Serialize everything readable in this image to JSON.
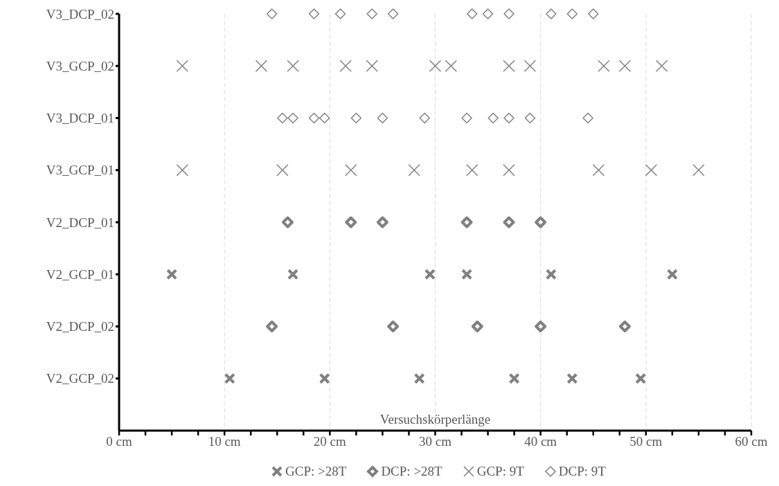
{
  "chart_data": {
    "type": "scatter",
    "xlabel": "Versuchskörperlänge",
    "orientation": "horizontal",
    "categories": [
      "V3_DCP_02",
      "V3_GCP_02",
      "V3_DCP_01",
      "V3_GCP_01",
      "V2_DCP_01",
      "V2_GCP_01",
      "V2_DCP_02",
      "V2_GCP_02"
    ],
    "xlim": [
      0,
      60
    ],
    "xticks": [
      {
        "value": 0,
        "label": "0 cm"
      },
      {
        "value": 2.5,
        "label": null
      },
      {
        "value": 5,
        "label": null
      },
      {
        "value": 7.5,
        "label": null
      },
      {
        "value": 10,
        "label": "10 cm"
      },
      {
        "value": 12.5,
        "label": null
      },
      {
        "value": 15,
        "label": null
      },
      {
        "value": 17.5,
        "label": null
      },
      {
        "value": 20,
        "label": "20 cm"
      },
      {
        "value": 22.5,
        "label": null
      },
      {
        "value": 25,
        "label": null
      },
      {
        "value": 27.5,
        "label": null
      },
      {
        "value": 30,
        "label": "30 cm"
      },
      {
        "value": 32.5,
        "label": null
      },
      {
        "value": 35,
        "label": null
      },
      {
        "value": 37.5,
        "label": null
      },
      {
        "value": 40,
        "label": "40 cm"
      },
      {
        "value": 42.5,
        "label": null
      },
      {
        "value": 45,
        "label": null
      },
      {
        "value": 47.5,
        "label": null
      },
      {
        "value": 50,
        "label": "50 cm"
      },
      {
        "value": 52.5,
        "label": null
      },
      {
        "value": 55,
        "label": null
      },
      {
        "value": 57.5,
        "label": null
      },
      {
        "value": 60,
        "label": "60 cm"
      }
    ],
    "grid": "x",
    "legend": "bottom",
    "series": [
      {
        "name": "GCP: >28T",
        "color": "#808080",
        "marker": "cross",
        "values": [
          null,
          null,
          null,
          null,
          null,
          5,
          null,
          10.5
        ]
      },
      {
        "color": "#808080",
        "marker": "cross",
        "values": [
          null,
          null,
          null,
          null,
          null,
          16.5,
          null,
          19.5
        ]
      },
      {
        "color": "#808080",
        "marker": "cross",
        "values": [
          null,
          null,
          null,
          null,
          null,
          29.5,
          null,
          28.5
        ]
      },
      {
        "color": "#808080",
        "marker": "cross",
        "values": [
          null,
          null,
          null,
          null,
          null,
          33,
          null,
          37.5
        ]
      },
      {
        "color": "#808080",
        "marker": "cross",
        "values": [
          null,
          null,
          null,
          null,
          null,
          41,
          null,
          43
        ]
      },
      {
        "color": "#808080",
        "marker": "cross",
        "values": [
          null,
          null,
          null,
          null,
          null,
          52.5,
          null,
          49.5
        ]
      },
      {
        "name": "DCP: >28T",
        "color": "#808080",
        "marker": "diamond",
        "values": [
          null,
          null,
          null,
          null,
          16,
          null,
          14.5,
          null
        ]
      },
      {
        "color": "#808080",
        "marker": "diamond",
        "values": [
          null,
          null,
          null,
          null,
          22,
          null,
          26,
          null
        ]
      },
      {
        "color": "#808080",
        "marker": "diamond",
        "values": [
          null,
          null,
          null,
          null,
          25,
          null,
          34,
          null
        ]
      },
      {
        "color": "#808080",
        "marker": "diamond",
        "values": [
          null,
          null,
          null,
          null,
          33,
          null,
          40,
          null
        ]
      },
      {
        "color": "#808080",
        "marker": "diamond",
        "values": [
          null,
          null,
          null,
          null,
          37,
          null,
          48,
          null
        ]
      },
      {
        "color": "#808080",
        "marker": "diamond",
        "values": [
          null,
          null,
          null,
          null,
          40,
          null,
          null,
          null
        ]
      },
      {
        "name": "GCP: 9T",
        "color": "#808080",
        "marker": "cross",
        "values": [
          null,
          6,
          null,
          6,
          null,
          null,
          null,
          null
        ]
      },
      {
        "color": "#808080",
        "marker": "cross",
        "values": [
          null,
          13.5,
          null,
          15.5,
          null,
          null,
          null,
          null
        ]
      },
      {
        "color": "#808080",
        "marker": "cross",
        "values": [
          null,
          16.5,
          null,
          22,
          null,
          null,
          null,
          null
        ]
      },
      {
        "color": "#808080",
        "marker": "cross",
        "values": [
          null,
          21.5,
          null,
          28,
          null,
          null,
          null,
          null
        ]
      },
      {
        "color": "#808080",
        "marker": "cross",
        "values": [
          null,
          24,
          null,
          33.5,
          null,
          null,
          null,
          null
        ]
      },
      {
        "color": "#808080",
        "marker": "cross",
        "values": [
          null,
          30,
          null,
          37,
          null,
          null,
          null,
          null
        ]
      },
      {
        "color": "#808080",
        "marker": "cross",
        "values": [
          null,
          31.5,
          null,
          45.5,
          null,
          null,
          null,
          null
        ]
      },
      {
        "color": "#808080",
        "marker": "cross",
        "values": [
          null,
          37,
          null,
          50.5,
          null,
          null,
          null,
          null
        ]
      },
      {
        "color": "#808080",
        "marker": "cross",
        "values": [
          null,
          39,
          null,
          55,
          null,
          null,
          null,
          null
        ]
      },
      {
        "color": "#808080",
        "marker": "cross",
        "values": [
          null,
          46,
          null,
          null,
          null,
          null,
          null,
          null
        ]
      },
      {
        "color": "#808080",
        "marker": "cross",
        "values": [
          null,
          48,
          null,
          null,
          null,
          null,
          null,
          null
        ]
      },
      {
        "color": "#808080",
        "marker": "cross",
        "values": [
          null,
          51.5,
          null,
          null,
          null,
          null,
          null,
          null
        ]
      },
      {
        "name": "DCP: 9T",
        "color": "#808080",
        "marker": "diamond",
        "values": [
          14.5,
          null,
          15.5,
          null,
          null,
          null,
          null,
          null
        ]
      },
      {
        "color": "#808080",
        "marker": "diamond",
        "values": [
          18.5,
          null,
          16.5,
          null,
          null,
          null,
          null,
          null
        ]
      },
      {
        "color": "#808080",
        "marker": "diamond",
        "values": [
          21,
          null,
          18.5,
          null,
          null,
          null,
          null,
          null
        ]
      },
      {
        "color": "#808080",
        "marker": "diamond",
        "values": [
          24,
          null,
          19.5,
          null,
          null,
          null,
          null,
          null
        ]
      },
      {
        "color": "#808080",
        "marker": "diamond",
        "values": [
          26,
          null,
          22.5,
          null,
          null,
          null,
          null,
          null
        ]
      },
      {
        "color": "#808080",
        "marker": "diamond",
        "values": [
          33.5,
          null,
          25,
          null,
          null,
          null,
          null,
          null
        ]
      },
      {
        "color": "#808080",
        "marker": "diamond",
        "values": [
          35,
          null,
          29,
          null,
          null,
          null,
          null,
          null
        ]
      },
      {
        "color": "#808080",
        "marker": "diamond",
        "values": [
          37,
          null,
          33,
          null,
          null,
          null,
          null,
          null
        ]
      },
      {
        "color": "#808080",
        "marker": "diamond",
        "values": [
          41,
          null,
          35.5,
          null,
          null,
          null,
          null,
          null
        ]
      },
      {
        "color": "#808080",
        "marker": "diamond",
        "values": [
          43,
          null,
          37,
          null,
          null,
          null,
          null,
          null
        ]
      },
      {
        "color": "#808080",
        "marker": "diamond",
        "values": [
          45,
          null,
          39,
          null,
          null,
          null,
          null,
          null
        ]
      },
      {
        "color": "#808080",
        "marker": "diamond",
        "values": [
          null,
          null,
          44.5,
          null,
          null,
          null,
          null,
          null
        ]
      }
    ]
  }
}
